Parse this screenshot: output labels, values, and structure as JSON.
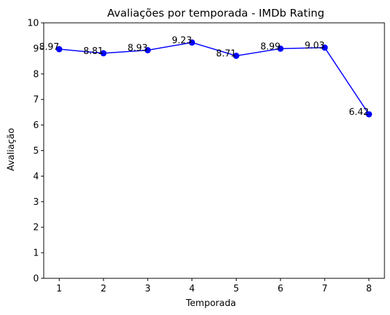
{
  "chart_data": {
    "type": "line",
    "title": "Avaliações por temporada - IMDb Rating",
    "xlabel": "Temporada",
    "ylabel": "Avaliação",
    "x": [
      1,
      2,
      3,
      4,
      5,
      6,
      7,
      8
    ],
    "y": [
      8.97,
      8.81,
      8.93,
      9.23,
      8.71,
      8.99,
      9.03,
      6.42
    ],
    "data_labels": [
      "8.97",
      "8.81",
      "8.93",
      "9.23",
      "8.71",
      "8.99",
      "9.03",
      "6.42"
    ],
    "xticks": [
      "1",
      "2",
      "3",
      "4",
      "5",
      "6",
      "7",
      "8"
    ],
    "yticks": [
      "0",
      "1",
      "2",
      "3",
      "4",
      "5",
      "6",
      "7",
      "8",
      "9",
      "10"
    ],
    "xlim": [
      0.65,
      8.35
    ],
    "ylim": [
      0,
      10
    ],
    "grid": false,
    "marker": "circle",
    "color": "#0000ff"
  }
}
